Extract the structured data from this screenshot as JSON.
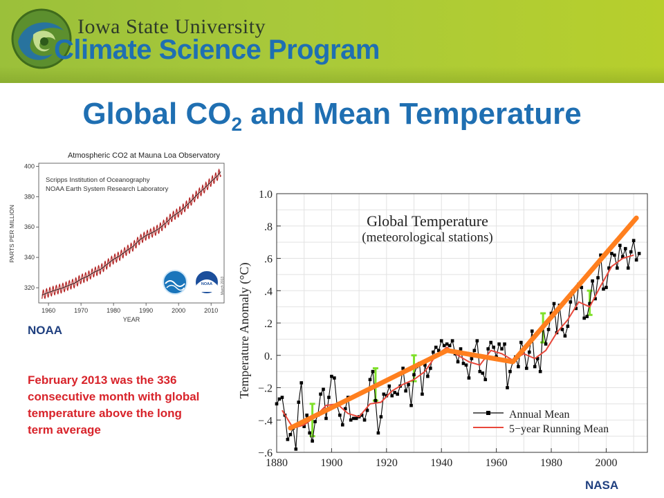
{
  "header": {
    "university": "Iowa State University",
    "program": "Climate Science Program"
  },
  "slide_title": {
    "main": "Global CO",
    "subscript": "2",
    "rest": " and  Mean Temperature"
  },
  "labels": {
    "noaa": "NOAA",
    "nasa": "NASA",
    "note": "February 2013 was the 336 consecutive month with global temperature above the long term average"
  },
  "colors": {
    "banner": "#a9c93a",
    "title": "#1f6fb2",
    "note": "#d8232a",
    "co2_line": "#b22222",
    "annual": "#000000",
    "running": "#e8473a",
    "trend": "#ff7f1e",
    "uncertainty": "#7fe02a"
  },
  "chart_data": [
    {
      "type": "line",
      "title": "Atmospheric CO2 at Mauna Loa Observatory",
      "subtitle_lines": [
        "Scripps Institution of Oceanography",
        "NOAA Earth System Research Laboratory"
      ],
      "xlabel": "YEAR",
      "ylabel": "PARTS PER MILLION",
      "xlim": [
        1957,
        2014
      ],
      "ylim": [
        310,
        402
      ],
      "xticks": [
        1960,
        1970,
        1980,
        1990,
        2000,
        2010
      ],
      "yticks": [
        320,
        340,
        360,
        380,
        400
      ],
      "stamp": "March 2013",
      "logos": [
        "scripps-logo",
        "noaa-logo"
      ],
      "x": [
        1958,
        1960,
        1962,
        1964,
        1966,
        1968,
        1970,
        1972,
        1974,
        1976,
        1978,
        1980,
        1982,
        1984,
        1986,
        1988,
        1990,
        1992,
        1994,
        1996,
        1998,
        2000,
        2002,
        2004,
        2006,
        2008,
        2010,
        2012,
        2013
      ],
      "values": [
        315.2,
        316.9,
        318.4,
        319.6,
        321.4,
        323.0,
        325.7,
        327.5,
        330.2,
        332.1,
        335.4,
        338.7,
        341.1,
        344.4,
        347.2,
        351.5,
        354.4,
        356.4,
        358.9,
        362.6,
        366.7,
        369.6,
        373.2,
        377.5,
        381.9,
        385.6,
        389.9,
        393.8,
        396.5
      ],
      "seasonal_amplitude": 3
    },
    {
      "type": "line",
      "title": "Global Temperature",
      "subtitle": "(meteorological stations)",
      "ylabel": "Temperature Anomaly (°C)",
      "xlim": [
        1880,
        2015
      ],
      "ylim": [
        -0.6,
        1.0
      ],
      "xticks": [
        1880,
        1900,
        1920,
        1940,
        1960,
        1980,
        2000
      ],
      "yticks": [
        -0.6,
        -0.4,
        -0.2,
        0.0,
        0.2,
        0.4,
        0.6,
        0.8,
        1.0
      ],
      "ytick_labels": [
        "−.6",
        "−.4",
        "−.2",
        "0.",
        ".2",
        ".4",
        ".6",
        ".8",
        "1.0"
      ],
      "legend": {
        "position": "bottom-right",
        "entries": [
          "Annual Mean",
          "5−year Running Mean"
        ]
      },
      "series": [
        {
          "name": "Annual Mean",
          "x": [
            1880,
            1881,
            1882,
            1883,
            1884,
            1885,
            1886,
            1887,
            1888,
            1889,
            1890,
            1891,
            1892,
            1893,
            1894,
            1895,
            1896,
            1897,
            1898,
            1899,
            1900,
            1901,
            1902,
            1903,
            1904,
            1905,
            1906,
            1907,
            1908,
            1909,
            1910,
            1911,
            1912,
            1913,
            1914,
            1915,
            1916,
            1917,
            1918,
            1919,
            1920,
            1921,
            1922,
            1923,
            1924,
            1925,
            1926,
            1927,
            1928,
            1929,
            1930,
            1931,
            1932,
            1933,
            1934,
            1935,
            1936,
            1937,
            1938,
            1939,
            1940,
            1941,
            1942,
            1943,
            1944,
            1945,
            1946,
            1947,
            1948,
            1949,
            1950,
            1951,
            1952,
            1953,
            1954,
            1955,
            1956,
            1957,
            1958,
            1959,
            1960,
            1961,
            1962,
            1963,
            1964,
            1965,
            1966,
            1967,
            1968,
            1969,
            1970,
            1971,
            1972,
            1973,
            1974,
            1975,
            1976,
            1977,
            1978,
            1979,
            1980,
            1981,
            1982,
            1983,
            1984,
            1985,
            1986,
            1987,
            1988,
            1989,
            1990,
            1991,
            1992,
            1993,
            1994,
            1995,
            1996,
            1997,
            1998,
            1999,
            2000,
            2001,
            2002,
            2003,
            2004,
            2005,
            2006,
            2007,
            2008,
            2009,
            2010,
            2011,
            2012
          ],
          "values": [
            -0.3,
            -0.27,
            -0.26,
            -0.37,
            -0.52,
            -0.49,
            -0.45,
            -0.58,
            -0.29,
            -0.17,
            -0.44,
            -0.37,
            -0.48,
            -0.53,
            -0.41,
            -0.37,
            -0.24,
            -0.21,
            -0.39,
            -0.26,
            -0.13,
            -0.14,
            -0.31,
            -0.37,
            -0.43,
            -0.33,
            -0.26,
            -0.4,
            -0.39,
            -0.39,
            -0.38,
            -0.37,
            -0.4,
            -0.34,
            -0.15,
            -0.1,
            -0.28,
            -0.48,
            -0.38,
            -0.24,
            -0.25,
            -0.19,
            -0.25,
            -0.23,
            -0.24,
            -0.19,
            -0.08,
            -0.22,
            -0.18,
            -0.31,
            -0.12,
            -0.07,
            -0.05,
            -0.24,
            -0.06,
            -0.13,
            -0.08,
            0.02,
            0.05,
            0.03,
            0.09,
            0.06,
            0.07,
            0.06,
            0.09,
            0.01,
            -0.04,
            0.04,
            -0.05,
            -0.06,
            -0.14,
            -0.02,
            0.03,
            0.09,
            -0.1,
            -0.11,
            -0.15,
            0.04,
            0.08,
            0.05,
            -0.01,
            0.07,
            0.04,
            0.07,
            -0.2,
            -0.1,
            -0.04,
            -0.01,
            -0.07,
            0.08,
            0.04,
            -0.08,
            0.02,
            0.15,
            -0.07,
            -0.02,
            -0.1,
            0.18,
            0.07,
            0.16,
            0.26,
            0.32,
            0.14,
            0.31,
            0.16,
            0.12,
            0.18,
            0.33,
            0.4,
            0.29,
            0.44,
            0.42,
            0.23,
            0.24,
            0.32,
            0.46,
            0.35,
            0.48,
            0.62,
            0.41,
            0.42,
            0.54,
            0.63,
            0.62,
            0.54,
            0.68,
            0.61,
            0.66,
            0.54,
            0.64,
            0.71,
            0.59,
            0.63
          ]
        },
        {
          "name": "5−year Running Mean",
          "x": [
            1882,
            1886,
            1890,
            1894,
            1898,
            1902,
            1906,
            1910,
            1914,
            1918,
            1922,
            1926,
            1930,
            1934,
            1938,
            1942,
            1946,
            1950,
            1954,
            1958,
            1962,
            1966,
            1970,
            1974,
            1978,
            1982,
            1986,
            1990,
            1994,
            1998,
            2002,
            2006,
            2010
          ],
          "values": [
            -0.34,
            -0.45,
            -0.43,
            -0.38,
            -0.31,
            -0.3,
            -0.36,
            -0.38,
            -0.3,
            -0.29,
            -0.22,
            -0.18,
            -0.15,
            -0.1,
            0.0,
            0.05,
            0.0,
            -0.04,
            -0.06,
            0.03,
            0.01,
            -0.03,
            0.01,
            -0.02,
            0.03,
            0.14,
            0.22,
            0.33,
            0.3,
            0.43,
            0.55,
            0.6,
            0.62
          ]
        },
        {
          "x": [
            1885,
            1942,
            1966,
            2011
          ],
          "values": [
            -0.45,
            0.03,
            -0.04,
            0.85
          ]
        }
      ],
      "uncertainty_bars": [
        {
          "x": 1893,
          "low": -0.5,
          "high": -0.3
        },
        {
          "x": 1916,
          "low": -0.28,
          "high": -0.08
        },
        {
          "x": 1930,
          "low": -0.16,
          "high": 0.0
        },
        {
          "x": 1977,
          "low": 0.08,
          "high": 0.26
        },
        {
          "x": 1994,
          "low": 0.25,
          "high": 0.4
        }
      ]
    }
  ]
}
